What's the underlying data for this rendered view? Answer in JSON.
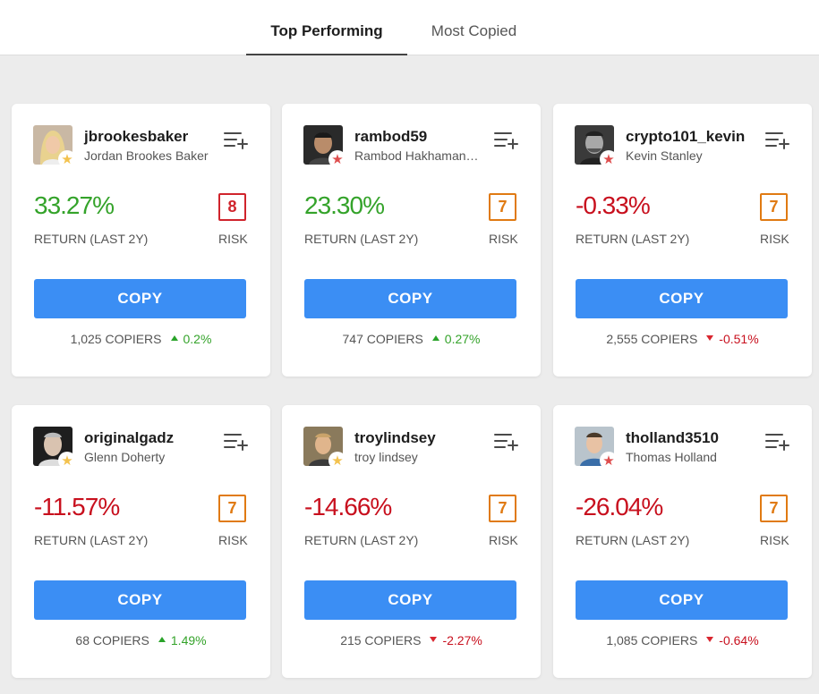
{
  "tabs": [
    {
      "label": "Top Performing",
      "active": true
    },
    {
      "label": "Most Copied",
      "active": false
    }
  ],
  "colors": {
    "positive": "#34a32a",
    "negative": "#c8101e",
    "risk_high": "#d0242c",
    "risk_medium": "#e07a12",
    "star_gold": "#f3c24e",
    "star_red": "#de4d4d",
    "copy_button": "#3b8ef4"
  },
  "cards": [
    {
      "username": "jbrookesbaker",
      "full_name": "Jordan Brookes Baker",
      "star": "gold",
      "return": "33.27%",
      "return_label": "RETURN (LAST 2Y)",
      "trend": "positive",
      "risk": "8",
      "risk_level": "high",
      "risk_label": "RISK",
      "copy_label": "COPY",
      "copiers": "1,025 COPIERS",
      "copiers_change": "0.2%",
      "copiers_dir": "up"
    },
    {
      "username": "rambod59",
      "full_name": "Rambod Hakhamanesh",
      "star": "red",
      "return": "23.30%",
      "return_label": "RETURN (LAST 2Y)",
      "trend": "positive",
      "risk": "7",
      "risk_level": "medium",
      "risk_label": "RISK",
      "copy_label": "COPY",
      "copiers": "747 COPIERS",
      "copiers_change": "0.27%",
      "copiers_dir": "up"
    },
    {
      "username": "crypto101_kevin",
      "full_name": "Kevin Stanley",
      "star": "red",
      "return": "-0.33%",
      "return_label": "RETURN (LAST 2Y)",
      "trend": "negative",
      "risk": "7",
      "risk_level": "medium",
      "risk_label": "RISK",
      "copy_label": "COPY",
      "copiers": "2,555 COPIERS",
      "copiers_change": "-0.51%",
      "copiers_dir": "down"
    },
    {
      "username": "originalgadz",
      "full_name": "Glenn Doherty",
      "star": "gold",
      "return": "-11.57%",
      "return_label": "RETURN (LAST 2Y)",
      "trend": "negative",
      "risk": "7",
      "risk_level": "medium",
      "risk_label": "RISK",
      "copy_label": "COPY",
      "copiers": "68 COPIERS",
      "copiers_change": "1.49%",
      "copiers_dir": "up"
    },
    {
      "username": "troylindsey",
      "full_name": "troy lindsey",
      "star": "gold",
      "return": "-14.66%",
      "return_label": "RETURN (LAST 2Y)",
      "trend": "negative",
      "risk": "7",
      "risk_level": "medium",
      "risk_label": "RISK",
      "copy_label": "COPY",
      "copiers": "215 COPIERS",
      "copiers_change": "-2.27%",
      "copiers_dir": "down"
    },
    {
      "username": "tholland3510",
      "full_name": "Thomas Holland",
      "star": "red",
      "return": "-26.04%",
      "return_label": "RETURN (LAST 2Y)",
      "trend": "negative",
      "risk": "7",
      "risk_level": "medium",
      "risk_label": "RISK",
      "copy_label": "COPY",
      "copiers": "1,085 COPIERS",
      "copiers_change": "-0.64%",
      "copiers_dir": "down"
    }
  ]
}
